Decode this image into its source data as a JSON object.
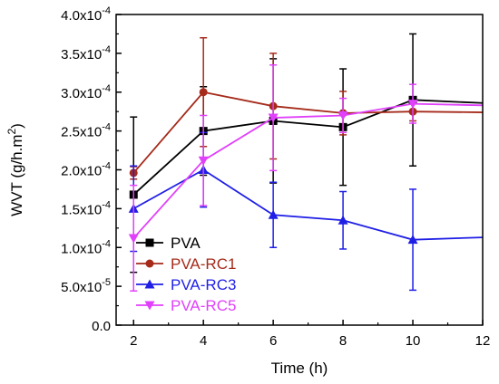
{
  "chart_data": {
    "type": "line",
    "xlabel": "Time (h)",
    "ylabel_prefix": "WVT (g/h.m",
    "ylabel_sup": "2",
    "ylabel_suffix": ")",
    "xlim": [
      1.5,
      12
    ],
    "ylim": [
      0,
      0.0004
    ],
    "x_ticks": [
      2,
      4,
      6,
      8,
      10,
      12
    ],
    "x_tick_labels": [
      "2",
      "4",
      "6",
      "8",
      "10",
      "12"
    ],
    "y_ticks": [
      {
        "value": 0.0,
        "mantissa": "0.0",
        "exp": ""
      },
      {
        "value": 5e-05,
        "mantissa": "5.0x10",
        "exp": "-5"
      },
      {
        "value": 0.0001,
        "mantissa": "1.0x10",
        "exp": "-4"
      },
      {
        "value": 0.00015,
        "mantissa": "1.5x10",
        "exp": "-4"
      },
      {
        "value": 0.0002,
        "mantissa": "2.0x10",
        "exp": "-4"
      },
      {
        "value": 0.00025,
        "mantissa": "2.5x10",
        "exp": "-4"
      },
      {
        "value": 0.0003,
        "mantissa": "3.0x10",
        "exp": "-4"
      },
      {
        "value": 0.00035,
        "mantissa": "3.5x10",
        "exp": "-4"
      },
      {
        "value": 0.0004,
        "mantissa": "4.0x10",
        "exp": "-4"
      }
    ],
    "legend_position": "bottom-left",
    "series": [
      {
        "name": "PVA",
        "color": "#000000",
        "marker": "square",
        "x": [
          2,
          4,
          6,
          8,
          10,
          12
        ],
        "y": [
          0.000168,
          0.00025,
          0.000263,
          0.000255,
          0.00029,
          0.000286
        ],
        "err": [
          0.0001,
          5.7e-05,
          8e-05,
          7.5e-05,
          8.5e-05,
          null
        ]
      },
      {
        "name": "PVA-RC1",
        "color": "#A52A1A",
        "marker": "circle",
        "x": [
          2,
          4,
          6,
          8,
          10,
          12
        ],
        "y": [
          0.000196,
          0.0003,
          0.000282,
          0.000273,
          0.000275,
          0.000274
        ],
        "err": [
          8e-06,
          7e-05,
          6.8e-05,
          2.8e-05,
          1.2e-05,
          null
        ]
      },
      {
        "name": "PVA-RC3",
        "color": "#1F1FE6",
        "marker": "triangle-up",
        "x": [
          2,
          4,
          6,
          8,
          10,
          12
        ],
        "y": [
          0.00015,
          0.0002,
          0.000142,
          0.000135,
          0.00011,
          0.000113
        ],
        "err": [
          5.5e-05,
          4.8e-05,
          4.2e-05,
          3.7e-05,
          6.5e-05,
          null
        ]
      },
      {
        "name": "PVA-RC5",
        "color": "#E040FB",
        "marker": "triangle-down",
        "x": [
          2,
          4,
          6,
          8,
          10,
          12
        ],
        "y": [
          0.000112,
          0.000212,
          0.000267,
          0.00027,
          0.000285,
          0.000283
        ],
        "err": [
          6.8e-05,
          5.8e-05,
          6.8e-05,
          2.2e-05,
          2.5e-05,
          null
        ]
      }
    ]
  }
}
